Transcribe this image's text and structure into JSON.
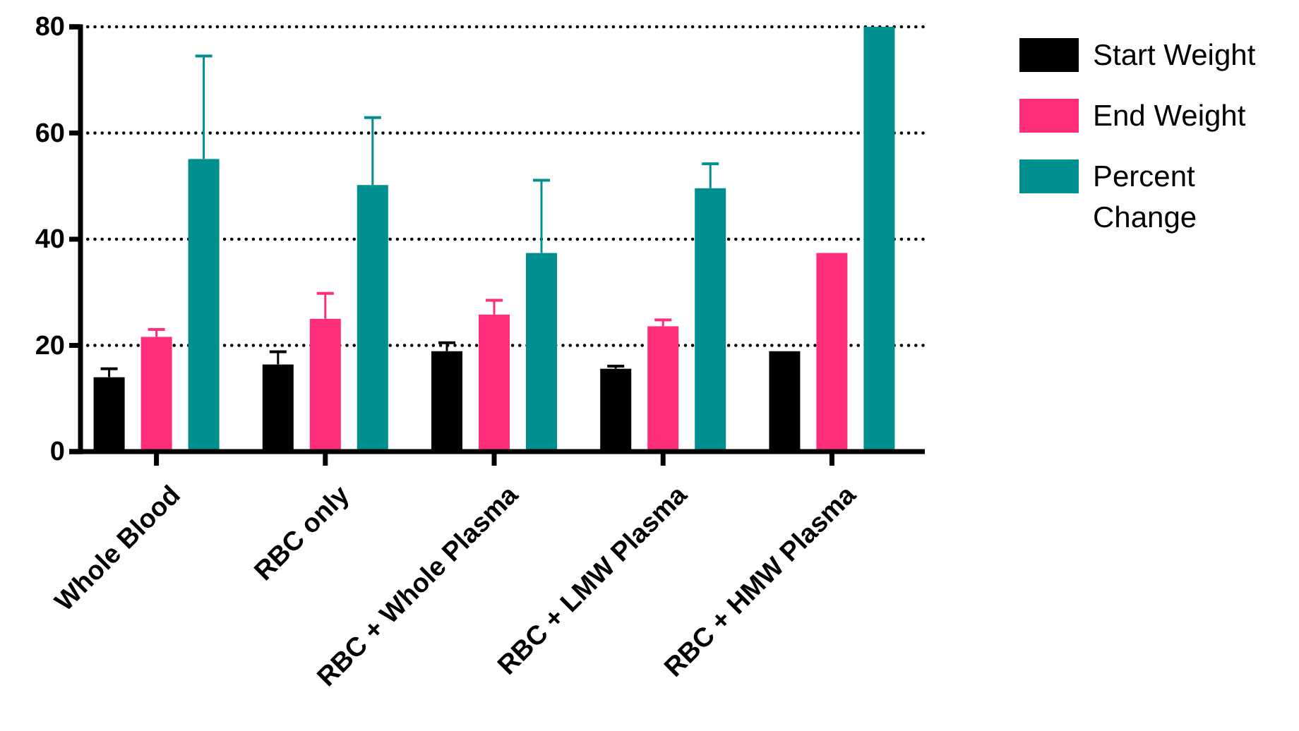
{
  "chart_data": {
    "type": "bar",
    "categories": [
      "Whole Blood",
      "RBC only",
      "RBC + Whole Plasma",
      "RBC + LMW Plasma",
      "RBC + HMW Plasma"
    ],
    "series": [
      {
        "name": "Start Weight",
        "color": "#000000",
        "values": [
          14.0,
          16.4,
          18.9,
          15.6,
          18.9
        ],
        "errors": [
          [
            14.0,
            15.6
          ],
          [
            16.4,
            18.8
          ],
          [
            18.9,
            20.5
          ],
          [
            15.6,
            16.1
          ],
          null
        ]
      },
      {
        "name": "End Weight",
        "color": "#ff2d7a",
        "values": [
          21.6,
          25.0,
          25.8,
          23.6,
          37.4
        ],
        "errors": [
          [
            21.6,
            23.0
          ],
          [
            25.0,
            29.8
          ],
          [
            25.8,
            28.5
          ],
          [
            23.6,
            24.8
          ],
          null
        ]
      },
      {
        "name": "Percent Change",
        "color": "#008f8f",
        "values": [
          55.1,
          50.2,
          37.4,
          49.6,
          80
        ],
        "errors": [
          [
            55.1,
            74.5
          ],
          [
            50.2,
            62.9
          ],
          [
            37.4,
            51.1
          ],
          [
            49.6,
            54.2
          ],
          null
        ]
      }
    ],
    "ylim": [
      0,
      80
    ],
    "yticks": [
      0,
      20,
      40,
      60,
      80
    ],
    "grid": "y",
    "legend": "right"
  }
}
